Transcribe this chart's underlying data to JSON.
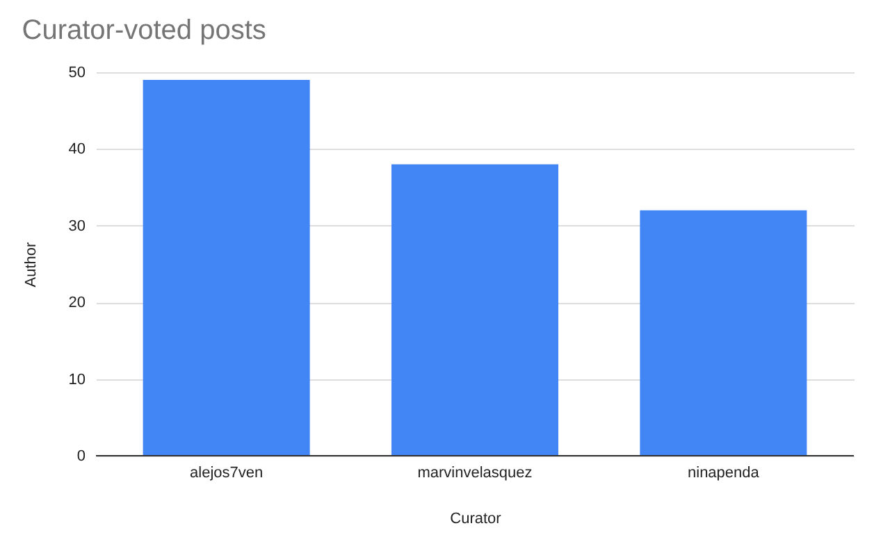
{
  "chart_data": {
    "type": "bar",
    "title": "Curator-voted posts",
    "xlabel": "Curator",
    "ylabel": "Author",
    "categories": [
      "alejos7ven",
      "marvinvelasquez",
      "ninapenda"
    ],
    "values": [
      49,
      38,
      32
    ],
    "color": "#4285f4",
    "ylim": [
      0,
      50
    ],
    "yticks": [
      0,
      10,
      20,
      30,
      40,
      50
    ],
    "grid": "y"
  }
}
